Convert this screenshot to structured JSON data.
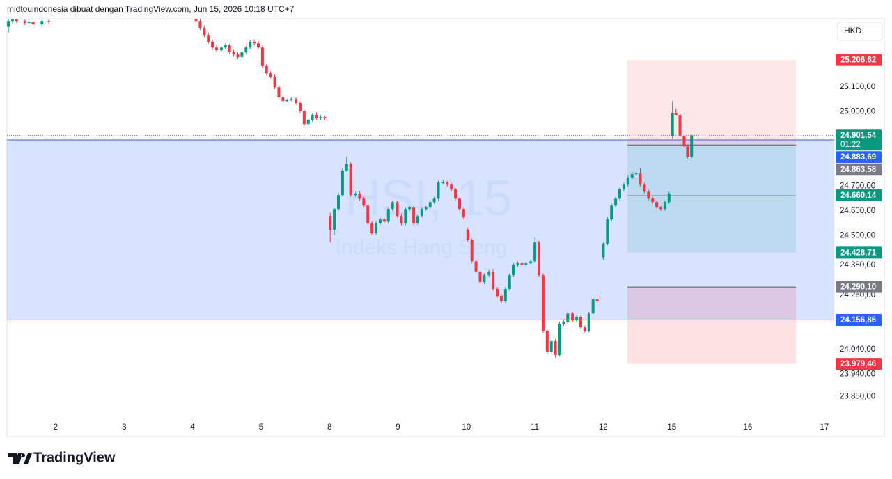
{
  "chart_data": {
    "type": "candlestick",
    "title": "midtouindonesia dibuat dengan TradingView.com, Jun 15, 2026 10:18 UTC+7",
    "currency": "HKD",
    "watermark": "HSI, 15",
    "watermark_subtitle": "Indeks Hang Seng",
    "brand": "TradingView",
    "up_color": "#089981",
    "down_color": "#f23645",
    "ylim": [
      23762,
      25373
    ],
    "xlim": [
      -0.712,
      11.373
    ],
    "yticks": [
      {
        "value": 25100,
        "label": "25.100,00"
      },
      {
        "value": 25000,
        "label": "25.000,00"
      },
      {
        "value": 24700,
        "label": "24.700,00"
      },
      {
        "value": 24600,
        "label": "24.600,00"
      },
      {
        "value": 24500,
        "label": "24.500,00"
      },
      {
        "value": 24380,
        "label": "24.380,00"
      },
      {
        "value": 24260,
        "label": "24.260,00"
      },
      {
        "value": 24040,
        "label": "24.040,00"
      },
      {
        "value": 23940,
        "label": "23.940,00"
      },
      {
        "value": 23850,
        "label": "23.850,00"
      }
    ],
    "xticks": [
      {
        "value": 0,
        "label": "2"
      },
      {
        "value": 1,
        "label": "3"
      },
      {
        "value": 2,
        "label": "4"
      },
      {
        "value": 3,
        "label": "5"
      },
      {
        "value": 4,
        "label": "8"
      },
      {
        "value": 5,
        "label": "9"
      },
      {
        "value": 6,
        "label": "10"
      },
      {
        "value": 7,
        "label": "11"
      },
      {
        "value": 8,
        "label": "12"
      },
      {
        "value": 9,
        "label": "15"
      },
      {
        "value": 10.11,
        "label": "16"
      },
      {
        "value": 11.23,
        "label": "17"
      }
    ],
    "price_labels": [
      {
        "value": 25206.62,
        "label": "25.206,62",
        "color": "#f23645"
      },
      {
        "value": 24901.54,
        "label": "24.901,54",
        "color": "#089981",
        "countdown": "01:22"
      },
      {
        "value": 24883.69,
        "label": "24.883,69",
        "color": "#2962ff"
      },
      {
        "value": 24863.58,
        "label": "24.863,58",
        "color": "#787b86"
      },
      {
        "value": 24660.14,
        "label": "24.660,14",
        "color": "#089981"
      },
      {
        "value": 24428.71,
        "label": "24.428,71",
        "color": "#089981"
      },
      {
        "value": 24290.1,
        "label": "24.290,10",
        "color": "#787b86"
      },
      {
        "value": 24156.86,
        "label": "24.156,86",
        "color": "#2962ff"
      },
      {
        "value": 23979.46,
        "label": "23.979,46",
        "color": "#f23645"
      }
    ],
    "x": [
      -0.69,
      -0.63,
      -0.57,
      -0.45,
      -0.39,
      -0.33,
      -0.2,
      -0.1,
      2.05,
      2.11,
      2.17,
      2.23,
      2.29,
      2.35,
      2.42,
      2.48,
      2.54,
      2.6,
      2.66,
      2.72,
      2.78,
      2.84,
      2.9,
      2.96,
      3.02,
      3.08,
      3.14,
      3.2,
      3.26,
      3.32,
      3.38,
      3.44,
      3.51,
      3.57,
      3.63,
      3.69,
      3.75,
      3.81,
      3.87,
      3.93,
      4.01,
      4.07,
      4.13,
      4.19,
      4.25,
      4.31,
      4.38,
      4.44,
      4.5,
      4.56,
      4.62,
      4.68,
      4.74,
      4.8,
      4.86,
      4.92,
      4.99,
      5.05,
      5.11,
      5.17,
      5.23,
      5.29,
      5.35,
      5.41,
      5.47,
      5.53,
      5.59,
      5.66,
      5.72,
      5.78,
      5.84,
      5.9,
      5.96,
      6.02,
      6.08,
      6.14,
      6.2,
      6.26,
      6.33,
      6.39,
      6.45,
      6.51,
      6.57,
      6.63,
      6.69,
      6.75,
      6.81,
      6.87,
      6.94,
      7,
      7.06,
      7.12,
      7.18,
      7.24,
      7.3,
      7.36,
      7.42,
      7.48,
      7.55,
      7.61,
      7.67,
      7.73,
      7.79,
      7.85,
      7.91,
      8,
      8.06,
      8.12,
      8.18,
      8.24,
      8.3,
      8.36,
      8.42,
      8.48,
      8.54,
      8.6,
      8.66,
      8.72,
      8.78,
      8.84,
      8.9,
      8.96,
      9.01,
      9.06,
      9.12,
      9.18,
      9.23,
      9.29
    ],
    "open": [
      25340,
      25364,
      25370,
      25364,
      25356,
      25359,
      25350,
      25364,
      25385,
      25364,
      25336,
      25308,
      25280,
      25257,
      25246,
      25257,
      25266,
      25238,
      25229,
      25218,
      25238,
      25257,
      25280,
      25274,
      25257,
      25182,
      25153,
      25139,
      25097,
      25055,
      25041,
      25044,
      25049,
      25033,
      24999,
      24948,
      24965,
      24985,
      24971,
      24976,
      24577,
      24521,
      24605,
      24661,
      24760,
      24788,
      24661,
      24667,
      24647,
      24619,
      24548,
      24507,
      24548,
      24563,
      24554,
      24605,
      24633,
      24577,
      24548,
      24605,
      24611,
      24548,
      24577,
      24605,
      24611,
      24633,
      24647,
      24712,
      24712,
      24703,
      24684,
      24647,
      24605,
      24521,
      24479,
      24394,
      24352,
      24310,
      24338,
      24352,
      24282,
      24254,
      24234,
      24282,
      24338,
      24380,
      24386,
      24380,
      24386,
      24394,
      24470,
      24338,
      24113,
      24029,
      24071,
      24015,
      24141,
      24150,
      24183,
      24155,
      24169,
      24127,
      24113,
      24183,
      24240,
      24410,
      24465,
      24563,
      24619,
      24647,
      24684,
      24703,
      24732,
      24746,
      24751,
      24703,
      24675,
      24647,
      24633,
      24611,
      24605,
      24633,
      24900,
      24993,
      24985,
      24900,
      24858,
      24816
    ],
    "high": [
      25372,
      25373,
      25373,
      25370,
      25368,
      25366,
      25372,
      25370,
      25390,
      25372,
      25345,
      25318,
      25290,
      25266,
      25262,
      25274,
      25272,
      25248,
      25238,
      25245,
      25264,
      25288,
      25290,
      25282,
      25265,
      25190,
      25160,
      25148,
      25105,
      25062,
      25050,
      25055,
      25056,
      25040,
      25008,
      24970,
      24990,
      24995,
      24984,
      24982,
      24590,
      24610,
      24670,
      24770,
      24815,
      24795,
      24674,
      24676,
      24655,
      24626,
      24556,
      24556,
      24570,
      24570,
      24612,
      24640,
      24640,
      24585,
      24612,
      24618,
      24618,
      24584,
      24612,
      24618,
      24640,
      24654,
      24720,
      24720,
      24718,
      24710,
      24690,
      24652,
      24612,
      24530,
      24486,
      24402,
      24360,
      24345,
      24358,
      24360,
      24290,
      24262,
      24290,
      24345,
      24386,
      24394,
      24392,
      24392,
      24402,
      24490,
      24476,
      24345,
      24120,
      24075,
      24080,
      24150,
      24160,
      24190,
      24190,
      24176,
      24176,
      24134,
      24190,
      24247,
      24262,
      24470,
      24572,
      24626,
      24654,
      24692,
      24711,
      24740,
      24754,
      24758,
      24770,
      24711,
      24682,
      24654,
      24640,
      24618,
      24640,
      24675,
      25040,
      25010,
      24993,
      24908,
      24866,
      24905
    ],
    "low": [
      25318,
      25355,
      25356,
      25348,
      25350,
      25342,
      25345,
      25350,
      25355,
      25328,
      25300,
      25272,
      25248,
      25238,
      25240,
      25250,
      25230,
      25220,
      25210,
      25212,
      25230,
      25250,
      25266,
      25250,
      25175,
      25146,
      25132,
      25090,
      25048,
      25034,
      25036,
      25040,
      25026,
      24992,
      24940,
      24942,
      24958,
      24964,
      24964,
      24964,
      24470,
      24500,
      24598,
      24655,
      24755,
      24654,
      24654,
      24640,
      24612,
      24540,
      24500,
      24500,
      24540,
      24546,
      24546,
      24598,
      24570,
      24540,
      24540,
      24598,
      24540,
      24540,
      24570,
      24598,
      24604,
      24626,
      24640,
      24704,
      24696,
      24676,
      24640,
      24598,
      24564,
      24472,
      24386,
      24345,
      24302,
      24302,
      24330,
      24275,
      24247,
      24226,
      24226,
      24275,
      24330,
      24372,
      24372,
      24372,
      24380,
      24386,
      24330,
      24105,
      24020,
      24022,
      24005,
      24008,
      24134,
      24142,
      24148,
      24148,
      24120,
      24106,
      24106,
      24176,
      24226,
      24400,
      24458,
      24555,
      24612,
      24640,
      24676,
      24696,
      24725,
      24739,
      24696,
      24668,
      24640,
      24626,
      24604,
      24598,
      24598,
      24626,
      24890,
      24985,
      24895,
      24852,
      24808,
      24810
    ],
    "close": [
      25364,
      25370,
      25364,
      25356,
      25359,
      25350,
      25364,
      25359,
      25364,
      25336,
      25308,
      25280,
      25257,
      25246,
      25257,
      25266,
      25238,
      25229,
      25218,
      25238,
      25257,
      25280,
      25274,
      25257,
      25182,
      25153,
      25139,
      25097,
      25055,
      25041,
      25044,
      25049,
      25033,
      24999,
      24948,
      24965,
      24985,
      24971,
      24976,
      24971,
      24521,
      24605,
      24661,
      24760,
      24788,
      24661,
      24667,
      24647,
      24619,
      24548,
      24507,
      24548,
      24563,
      24554,
      24605,
      24633,
      24577,
      24548,
      24605,
      24611,
      24548,
      24577,
      24605,
      24611,
      24633,
      24647,
      24712,
      24712,
      24703,
      24684,
      24647,
      24605,
      24571,
      24479,
      24394,
      24352,
      24310,
      24338,
      24352,
      24282,
      24254,
      24234,
      24282,
      24338,
      24380,
      24386,
      24380,
      24386,
      24394,
      24470,
      24338,
      24113,
      24029,
      24071,
      24015,
      24141,
      24150,
      24183,
      24155,
      24169,
      24127,
      24113,
      24183,
      24240,
      24234,
      24465,
      24563,
      24619,
      24647,
      24684,
      24703,
      24732,
      24746,
      24751,
      24703,
      24675,
      24647,
      24633,
      24611,
      24605,
      24633,
      24667,
      24993,
      24985,
      24900,
      24858,
      24816,
      24901.54
    ]
  }
}
